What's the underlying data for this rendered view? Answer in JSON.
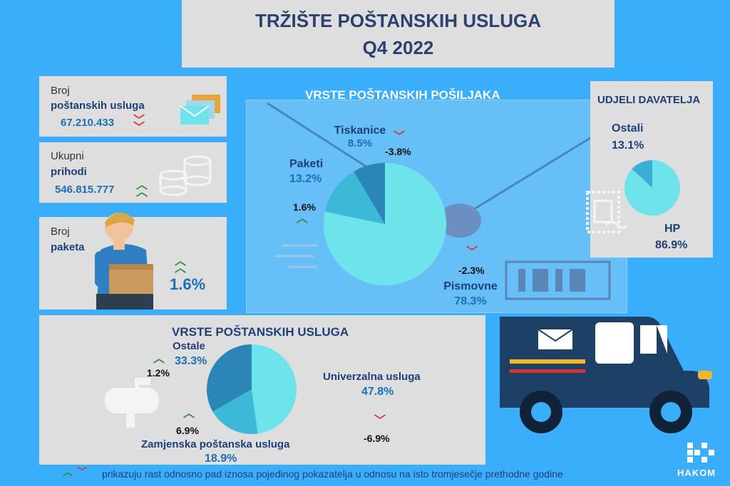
{
  "header": {
    "title_line1": "TRŽIŠTE POŠTANSKIH USLUGA",
    "title_line2": "Q4 2022"
  },
  "cards": {
    "services": {
      "label1": "Broj",
      "label2": "poštanskih usluga",
      "value": "67.210.433",
      "trend": "down"
    },
    "revenue": {
      "label1": "Ukupni",
      "label2": "prihodi",
      "value": "546.815.777",
      "trend": "up"
    },
    "parcels": {
      "label1": "Broj",
      "label2": "paketa",
      "value": "1.6%",
      "trend": "up"
    }
  },
  "shipments": {
    "title": "VRSTE POŠTANSKIH POŠILJAKA",
    "tiskanice": {
      "name": "Tiskanice",
      "share": "8.5%",
      "change": "-3.8%"
    },
    "paketi": {
      "name": "Paketi",
      "share": "13.2%",
      "change": "1.6%"
    },
    "pismovne": {
      "name": "Pismovne",
      "share": "78.3%",
      "change": "-2.3%"
    }
  },
  "providers": {
    "title": "UDJELI DAVATELJA",
    "ostali": {
      "name": "Ostali",
      "share": "13.1%"
    },
    "hp": {
      "name": "HP",
      "share": "86.9%"
    }
  },
  "services_types": {
    "title": "VRSTE POŠTANSKIH USLUGA",
    "ostale": {
      "name": "Ostale",
      "share": "33.3%",
      "change": "1.2%"
    },
    "univerzalna": {
      "name": "Univerzalna usluga",
      "share": "47.8%",
      "change": "-6.9%"
    },
    "zamjenska": {
      "name": "Zamjenska poštanska usluga",
      "share": "18.9%",
      "change": "6.9%"
    }
  },
  "footer": {
    "note": "prikazuju rast odnosno pad iznosa pojedinog pokazatelja u odnosu na isto tromjesečje prethodne godine",
    "logo": "HAKOM"
  },
  "chart_data": [
    {
      "type": "pie",
      "title": "VRSTE POŠTANSKIH POŠILJAKA",
      "categories": [
        "Pismovne",
        "Paketi",
        "Tiskanice"
      ],
      "values": [
        78.3,
        13.2,
        8.5
      ],
      "colors": [
        "#6ee3ec",
        "#3cb9d7",
        "#2a86b6"
      ]
    },
    {
      "type": "pie",
      "title": "UDJELI DAVATELJA",
      "categories": [
        "HP",
        "Ostali"
      ],
      "values": [
        86.9,
        13.1
      ],
      "colors": [
        "#6ee3ec",
        "#3aaed5"
      ]
    },
    {
      "type": "pie",
      "title": "VRSTE POŠTANSKIH USLUGA",
      "categories": [
        "Univerzalna usluga",
        "Zamjenska poštanska usluga",
        "Ostale"
      ],
      "values": [
        47.8,
        18.9,
        33.3
      ],
      "colors": [
        "#6ee3ec",
        "#3cb9d7",
        "#2a86b6"
      ]
    }
  ],
  "colors": {
    "background": "#3aaefa",
    "panel": "#dedede",
    "title": "#2b4170",
    "up": "#2e8b3a",
    "down": "#d4343a",
    "truck": "#1e3f66"
  }
}
